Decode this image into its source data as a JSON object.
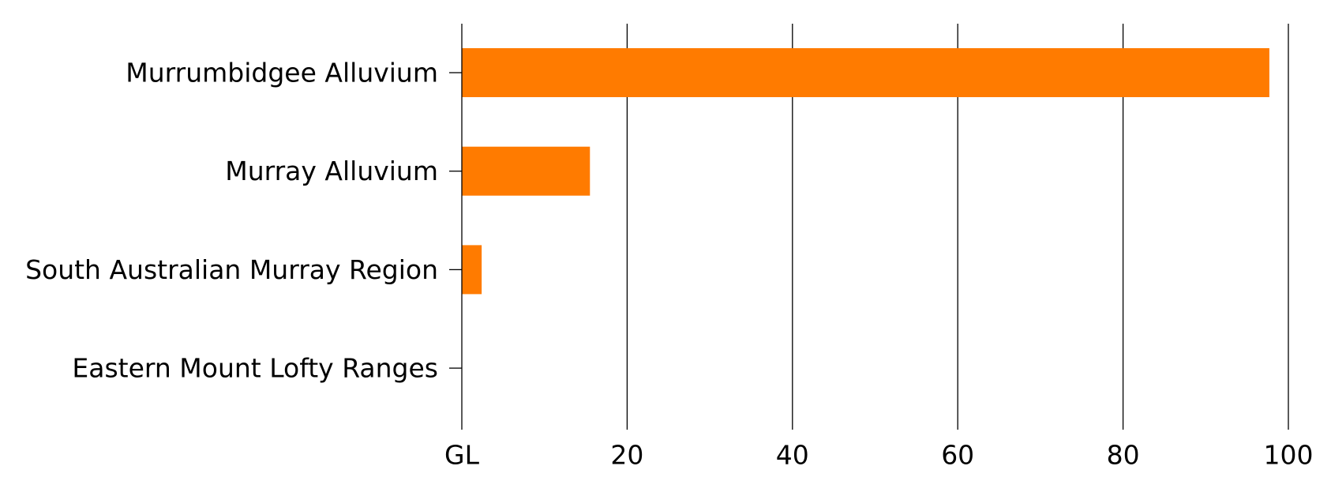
{
  "chart_data": {
    "type": "bar",
    "orientation": "horizontal",
    "title": "",
    "xlabel": "",
    "ylabel": "",
    "categories": [
      "Murrumbidgee Alluvium",
      "Murray Alluvium",
      "South Australian Murray Region",
      "Eastern Mount Lofty Ranges"
    ],
    "values": [
      97.7,
      15.5,
      2.4,
      0
    ],
    "xlim": [
      0,
      100
    ],
    "x_ticks": [
      0,
      20,
      40,
      60,
      80,
      100
    ],
    "x_tick_labels": [
      "GL",
      "20",
      "40",
      "60",
      "80",
      "100"
    ],
    "grid": "vertical",
    "legend": "none",
    "bar_color": "#ff7b00",
    "grid_color": "#000000"
  }
}
